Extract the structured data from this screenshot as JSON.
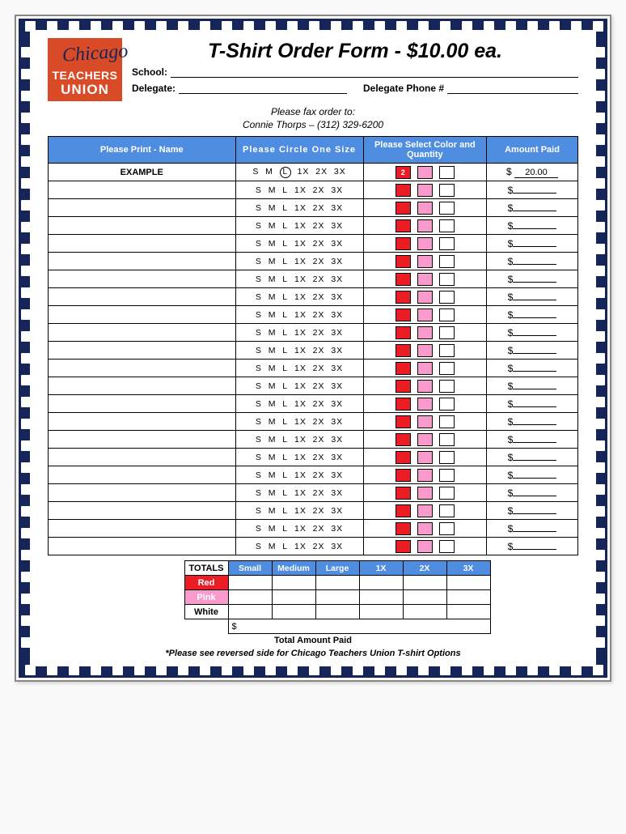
{
  "title": "T-Shirt Order Form - $10.00 ea.",
  "logo": {
    "script": "Chicago",
    "line1": "TEACHERS",
    "line2": "UNION"
  },
  "fields": {
    "school_label": "School:",
    "delegate_label": "Delegate:",
    "delegate_phone_label": "Delegate Phone #"
  },
  "fax": {
    "line1": "Please fax order to:",
    "line2": "Connie Thorps – (312) 329-6200"
  },
  "columns": {
    "name": "Please Print - Name",
    "size": "Please Circle One Size",
    "color": "Please Select Color and Quantity",
    "amount": "Amount Paid"
  },
  "size_opts": [
    "S",
    "M",
    "L",
    "1X",
    "2X",
    "3X"
  ],
  "swatch_colors": [
    "#ea1c24",
    "#f89acb",
    "#ffffff"
  ],
  "example": {
    "name": "EXAMPLE",
    "circled": "L",
    "qty_red": "2",
    "amount": "20.00"
  },
  "row_count": 21,
  "totals": {
    "label": "TOTALS",
    "sizes": [
      "Small",
      "Medium",
      "Large",
      "1X",
      "2X",
      "3X"
    ],
    "colors": [
      {
        "label": "Red",
        "bg": "#ea1c24",
        "fg": "#ffffff"
      },
      {
        "label": "Pink",
        "bg": "#f89acb",
        "fg": "#ffffff"
      },
      {
        "label": "White",
        "bg": "#ffffff",
        "fg": "#000000"
      }
    ],
    "total_paid_label": "Total Amount Paid",
    "dollar": "$"
  },
  "footer": "*Please see reversed side for Chicago Teachers Union T-shirt Options",
  "navy": "#15255a",
  "header_blue": "#4f8de0"
}
